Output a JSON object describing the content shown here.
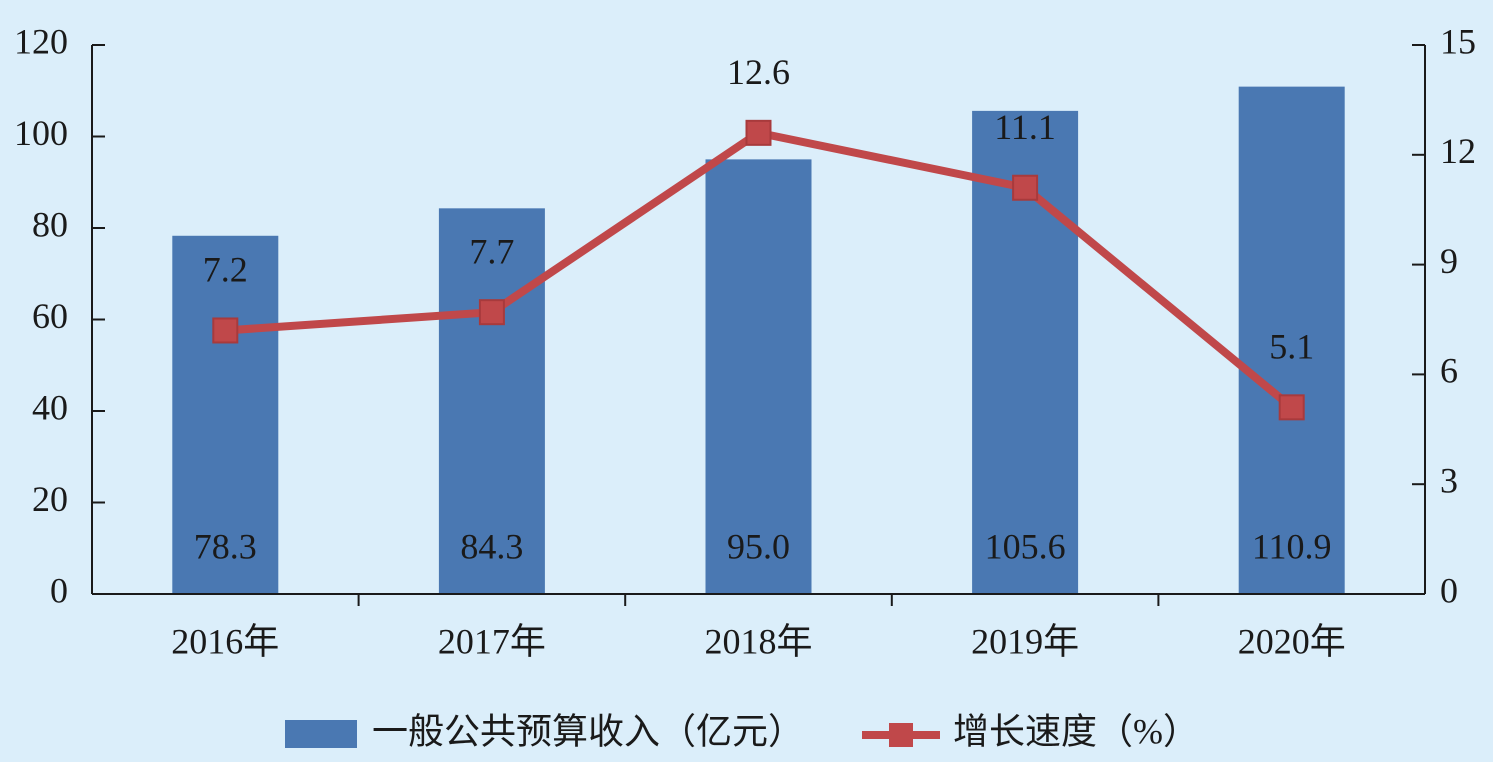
{
  "chart_data": {
    "type": "bar_line",
    "categories": [
      "2016年",
      "2017年",
      "2018年",
      "2019年",
      "2020年"
    ],
    "series": [
      {
        "name": "一般公共预算收入（亿元）",
        "type": "bar",
        "color": "#4a78b2",
        "values": [
          78.3,
          84.3,
          95.0,
          105.6,
          110.9
        ],
        "value_labels": [
          "78.3",
          "84.3",
          "95.0",
          "105.6",
          "110.9"
        ]
      },
      {
        "name": "增长速度（%）",
        "type": "line",
        "axis": "y2",
        "color": "#c0484a",
        "values": [
          7.2,
          7.7,
          12.6,
          11.1,
          5.1
        ]
      }
    ],
    "ylim": [
      0,
      120
    ],
    "yticks": [
      0,
      20,
      40,
      60,
      80,
      100,
      120
    ],
    "y2lim": [
      0,
      15
    ],
    "y2ticks": [
      0,
      3,
      6,
      9,
      12,
      15
    ],
    "legend": "bottom"
  }
}
